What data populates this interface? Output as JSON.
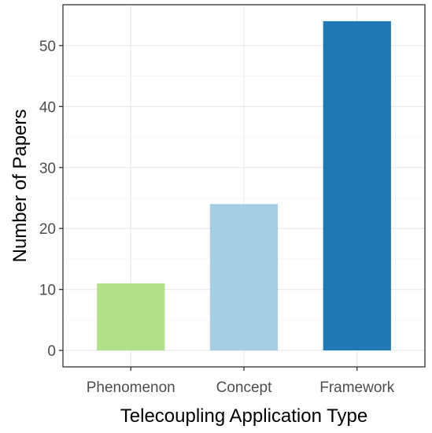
{
  "chart_data": {
    "type": "bar",
    "categories": [
      "Phenomenon",
      "Concept",
      "Framework"
    ],
    "values": [
      11,
      24,
      54
    ],
    "colors": [
      "#b2df8a",
      "#a6cee3",
      "#1f78b4"
    ],
    "xlabel": "Telecoupling Application Type",
    "ylabel": "Number of Papers",
    "ylim": [
      -2.7,
      56.7
    ],
    "yticks": [
      0,
      10,
      20,
      30,
      40,
      50
    ],
    "grid": true,
    "legend": "none"
  }
}
